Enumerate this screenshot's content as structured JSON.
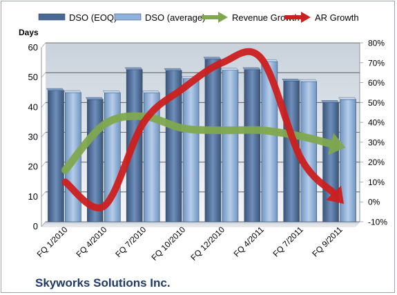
{
  "chart_data": {
    "type": "bar",
    "title": "Skyworks Solutions Inc.",
    "categories": [
      "FQ 1/2010",
      "FQ 4/2010",
      "FQ 7/2010",
      "FQ 10/2010",
      "FQ 12/2010",
      "FQ 4/2011",
      "FQ 7/2011",
      "FQ 9/2011"
    ],
    "ylabel": "Days",
    "ylim": [
      0,
      60
    ],
    "yticks": [
      0,
      10,
      20,
      30,
      40,
      50,
      60
    ],
    "y2lim": [
      -10,
      80
    ],
    "y2ticks": [
      "-10%",
      "0%",
      "10%",
      "20%",
      "30%",
      "40%",
      "50%",
      "60%",
      "70%",
      "80%"
    ],
    "y2values": [
      -10,
      0,
      10,
      20,
      30,
      40,
      50,
      60,
      70,
      80
    ],
    "grid": true,
    "legend": "top",
    "series": [
      {
        "name": "DSO (EOQ)",
        "type": "bar",
        "axis": "left",
        "color": "#4a6894",
        "values": [
          44,
          41,
          51,
          50.7,
          54.5,
          51,
          47.2,
          40
        ]
      },
      {
        "name": "DSO (average)",
        "type": "bar",
        "axis": "left",
        "color": "#8fb2dc",
        "values": [
          43.3,
          43.2,
          43.2,
          48,
          50.8,
          53.7,
          47,
          41
        ]
      },
      {
        "name": "Revenue Growth",
        "type": "arrow",
        "axis": "right",
        "color": "#7fa84e",
        "values": [
          16,
          39,
          43,
          37,
          36,
          36,
          33,
          28
        ]
      },
      {
        "name": "AR Growth",
        "type": "arrow",
        "axis": "right",
        "color": "#cc1f1f",
        "values": [
          10,
          -2,
          40,
          57,
          70,
          72,
          22,
          1
        ]
      }
    ]
  }
}
